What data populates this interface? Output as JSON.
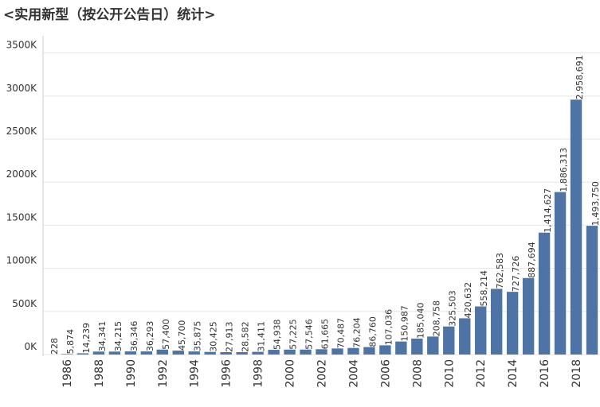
{
  "chart_data": {
    "type": "bar",
    "title": "<实用新型（按公开公告日）统计>",
    "categories": [
      null,
      "1986",
      null,
      "1988",
      null,
      "1990",
      null,
      "1992",
      null,
      "1994",
      null,
      "1996",
      null,
      "1998",
      null,
      "2000",
      null,
      "2002",
      null,
      "2004",
      null,
      "2006",
      null,
      "2008",
      null,
      "2010",
      null,
      "2012",
      null,
      "2014",
      null,
      "2016",
      null,
      "2018",
      null
    ],
    "values": [
      228,
      5874,
      14239,
      34341,
      34215,
      36346,
      36293,
      57400,
      45700,
      35875,
      30425,
      27913,
      28582,
      31411,
      54938,
      57225,
      57546,
      61665,
      70487,
      76204,
      86760,
      107036,
      150987,
      185040,
      208758,
      325503,
      420632,
      558214,
      762583,
      727726,
      887694,
      1414627,
      1886313,
      2958691,
      1493750
    ],
    "value_labels": [
      "228",
      "5,874",
      "14,239",
      "34,341",
      "34,215",
      "36,346",
      "36,293",
      "57,400",
      "45,700",
      "35,875",
      "30,425",
      "27,913",
      "28,582",
      "31,411",
      "54,938",
      "57,225",
      "57,546",
      "61,665",
      "70,487",
      "76,204",
      "86,760",
      "107,036",
      "150,987",
      "185,040",
      "208,758",
      "325,503",
      "420,632",
      "558,214",
      "762,583",
      "727,726",
      "887,694",
      "1,414,627",
      "1,886,313",
      "2,958,691",
      "1,493,750"
    ],
    "color": "#4e74a6",
    "ylim": [
      0,
      3700000
    ],
    "yticks": [
      {
        "value": 0,
        "label": "0K"
      },
      {
        "value": 500000,
        "label": "500K"
      },
      {
        "value": 1000000,
        "label": "1000K"
      },
      {
        "value": 1500000,
        "label": "1500K"
      },
      {
        "value": 2000000,
        "label": "2000K"
      },
      {
        "value": 2500000,
        "label": "2500K"
      },
      {
        "value": 3000000,
        "label": "3000K"
      },
      {
        "value": 3500000,
        "label": "3500K"
      }
    ],
    "grid": true
  }
}
